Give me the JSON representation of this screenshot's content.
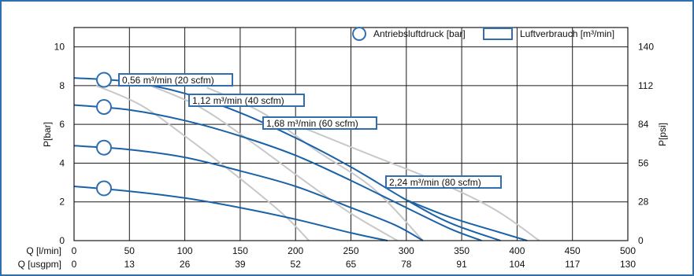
{
  "chart_data": {
    "type": "line",
    "title": "",
    "y_left_label": "P[bar]",
    "y_right_label": "P[psi]",
    "x_row1_label": "Q [l/min]",
    "x_row2_label": "Q [usgpm]",
    "x_ticks_lmin": [
      0,
      50,
      100,
      150,
      200,
      250,
      300,
      350,
      400,
      450,
      500
    ],
    "x_ticks_usgpm": [
      0,
      13,
      26,
      39,
      52,
      65,
      78,
      91,
      104,
      117,
      130
    ],
    "y_ticks_bar": [
      0,
      2,
      4,
      6,
      8,
      10
    ],
    "y_ticks_psi": [
      0,
      28,
      56,
      84,
      112,
      140
    ],
    "xlim": [
      0,
      500
    ],
    "ylim": [
      0,
      11
    ],
    "grid": true,
    "legend": [
      {
        "label": "Antriebsluftdruck [bar]",
        "marker": "circle"
      },
      {
        "label": "Luftverbrauch [m³/min]",
        "marker": "rectangle"
      }
    ],
    "pressure_series": [
      {
        "drive_pressure_bar": 8.3,
        "points": [
          [
            0,
            8.4
          ],
          [
            50,
            8.2
          ],
          [
            100,
            7.6
          ],
          [
            150,
            6.6
          ],
          [
            200,
            5.3
          ],
          [
            250,
            3.8
          ],
          [
            300,
            2.1
          ],
          [
            340,
            0.9
          ],
          [
            385,
            0
          ]
        ]
      },
      {
        "drive_pressure_bar": 6.9,
        "points": [
          [
            0,
            7.0
          ],
          [
            50,
            6.75
          ],
          [
            100,
            6.2
          ],
          [
            150,
            5.4
          ],
          [
            200,
            4.4
          ],
          [
            250,
            3.1
          ],
          [
            300,
            1.7
          ],
          [
            340,
            0.6
          ],
          [
            368,
            0
          ]
        ]
      },
      {
        "drive_pressure_bar": 4.8,
        "points": [
          [
            0,
            4.9
          ],
          [
            50,
            4.7
          ],
          [
            100,
            4.3
          ],
          [
            150,
            3.6
          ],
          [
            200,
            2.8
          ],
          [
            250,
            1.7
          ],
          [
            290,
            0.8
          ],
          [
            315,
            0
          ]
        ]
      },
      {
        "drive_pressure_bar": 2.7,
        "points": [
          [
            0,
            2.8
          ],
          [
            50,
            2.55
          ],
          [
            100,
            2.2
          ],
          [
            150,
            1.7
          ],
          [
            200,
            1.1
          ],
          [
            250,
            0.4
          ],
          [
            283,
            0
          ]
        ]
      },
      {
        "drive_pressure_bar": 8.3,
        "points": [
          [
            300,
            2.1
          ],
          [
            340,
            1.2
          ],
          [
            380,
            0.5
          ],
          [
            409,
            0
          ]
        ]
      }
    ],
    "air_consumption_curves": [
      {
        "label": "0,56 m³/min (20 scfm)",
        "points": [
          [
            20,
            8.0
          ],
          [
            60,
            7.0
          ],
          [
            100,
            5.4
          ],
          [
            150,
            3.2
          ],
          [
            190,
            1.3
          ],
          [
            212,
            0
          ]
        ]
      },
      {
        "label": "1,12 m³/min (40 scfm)",
        "points": [
          [
            55,
            8.3
          ],
          [
            110,
            7.0
          ],
          [
            160,
            5.1
          ],
          [
            210,
            3.0
          ],
          [
            250,
            1.4
          ],
          [
            292,
            0
          ]
        ]
      },
      {
        "label": "1,68 m³/min (60 scfm)",
        "points": [
          [
            120,
            7.9
          ],
          [
            170,
            6.6
          ],
          [
            220,
            4.6
          ],
          [
            270,
            2.7
          ],
          [
            315,
            0
          ]
        ]
      },
      {
        "label": "2,24 m³/min (80 scfm)",
        "points": [
          [
            195,
            6.1
          ],
          [
            260,
            4.6
          ],
          [
            330,
            3.0
          ],
          [
            380,
            1.6
          ],
          [
            420,
            0
          ]
        ]
      }
    ]
  }
}
